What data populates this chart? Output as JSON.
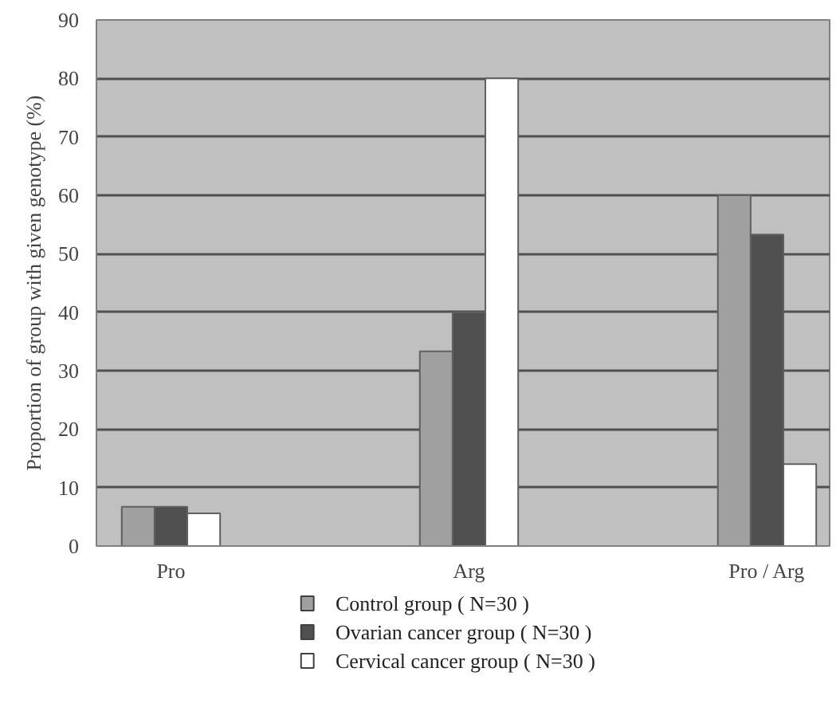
{
  "chart_data": {
    "type": "bar",
    "ylabel": "Proportion of group with given genotype (%)",
    "categories": [
      "Pro",
      "Arg",
      "Pro / Arg"
    ],
    "series": [
      {
        "name": "Control group ( N=30 )",
        "color": "#a0a0a0",
        "values": [
          6.7,
          33.3,
          60
        ]
      },
      {
        "name": "Ovarian cancer group ( N=30 )",
        "color": "#505050",
        "values": [
          6.7,
          40,
          53.3
        ]
      },
      {
        "name": "Cervical cancer group ( N=30 )",
        "color": "#ffffff",
        "values": [
          5.6,
          80,
          14
        ]
      }
    ],
    "ylim": [
      0,
      90
    ],
    "yticks": [
      0,
      10,
      20,
      30,
      40,
      50,
      60,
      70,
      80,
      90
    ],
    "grid": "y",
    "legend": "bottom"
  }
}
